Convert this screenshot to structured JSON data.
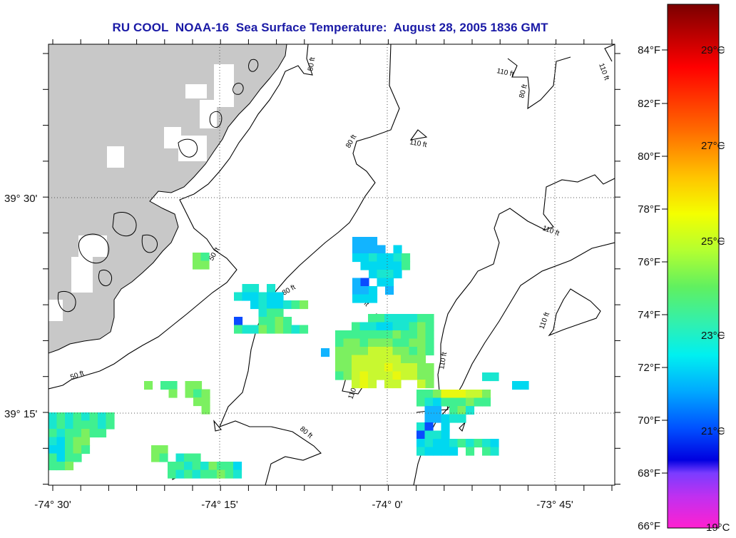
{
  "title": "RU COOL  NOAA-16  Sea Surface Temperature:  August 28, 2005 1836 GMT",
  "map": {
    "lon_labels": [
      "-74° 30'",
      "-74° 15'",
      "-74° 0'",
      "-73° 45'"
    ],
    "lat_labels": [
      "39° 30'",
      "39° 15'"
    ],
    "contour_labels": {
      "c50": "50 ft",
      "c80": "80 ft",
      "c110": "110 ft"
    },
    "land_color": "#c8c8c8"
  },
  "colorbar": {
    "fahrenheit_labels": [
      "84°F",
      "82°F",
      "80°F",
      "78°F",
      "76°F",
      "74°F",
      "72°F",
      "70°F",
      "68°F",
      "66°F"
    ],
    "celsius_labels": [
      "29°C",
      "27°C",
      "25°C",
      "23°C",
      "21°C",
      "19°C"
    ],
    "colors_top_to_bottom": [
      "#8b0000",
      "#e00000",
      "#ff4000",
      "#ff9900",
      "#ffd000",
      "#eeff00",
      "#b8ff20",
      "#60f060",
      "#30f0b0",
      "#00f0f0",
      "#00a0ff",
      "#0040ff",
      "#0000e0",
      "#8040ff",
      "#ff20d0"
    ]
  }
}
